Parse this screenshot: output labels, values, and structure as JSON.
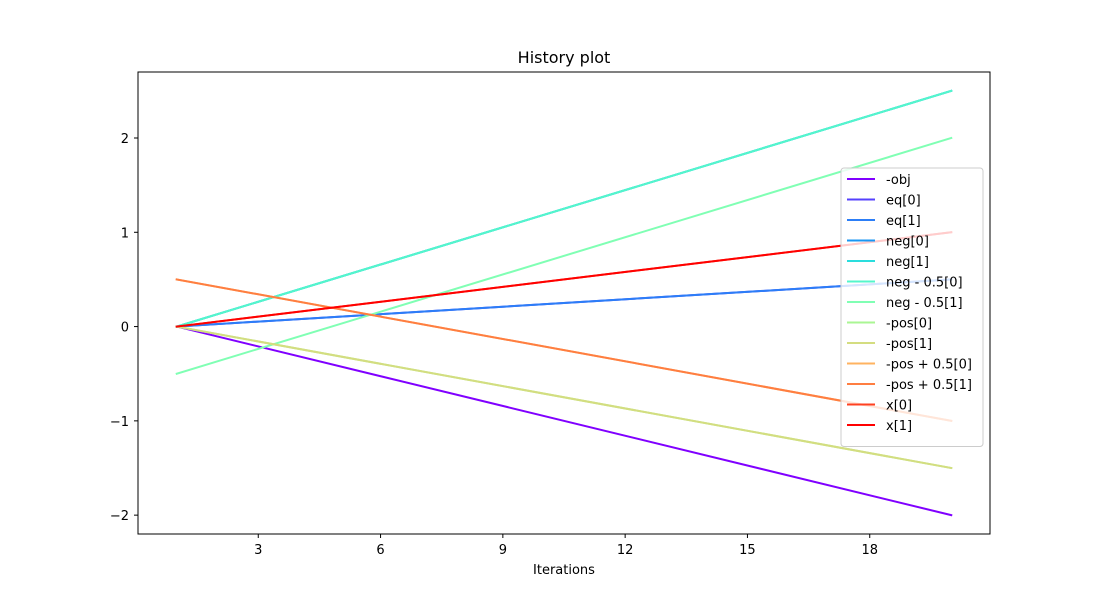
{
  "chart_data": {
    "type": "line",
    "title": "History plot",
    "xlabel": "Iterations",
    "ylabel": "",
    "xlim": [
      0.05,
      20.95
    ],
    "ylim": [
      -2.2,
      2.7
    ],
    "xticks": [
      3,
      6,
      9,
      12,
      15,
      18
    ],
    "yticks": [
      -2,
      -1,
      0,
      1,
      2
    ],
    "xtick_labels": [
      "3",
      "6",
      "9",
      "12",
      "15",
      "18"
    ],
    "ytick_labels": [
      "−2",
      "−1",
      "0",
      "1",
      "2"
    ],
    "grid": false,
    "legend_position": "right",
    "x": [
      1,
      20
    ],
    "series": [
      {
        "name": "-obj",
        "color": "#8000ff",
        "values": [
          0,
          -2
        ]
      },
      {
        "name": "eq[0]",
        "color": "#5641fd",
        "values": [
          0,
          0.5
        ]
      },
      {
        "name": "eq[1]",
        "color": "#2c7ef7",
        "values": [
          0,
          0.5
        ]
      },
      {
        "name": "neg[0]",
        "color": "#1996f3",
        "values": [
          0,
          2.5
        ]
      },
      {
        "name": "neg[1]",
        "color": "#2adddd",
        "values": [
          0,
          2.5
        ]
      },
      {
        "name": "neg - 0.5[0]",
        "color": "#54f6cb",
        "values": [
          0,
          2.5
        ]
      },
      {
        "name": "neg - 0.5[1]",
        "color": "#80ffb4",
        "values": [
          -0.5,
          2
        ]
      },
      {
        "name": "-pos[0]",
        "color": "#aaf693",
        "values": [
          0,
          -1.5
        ]
      },
      {
        "name": "-pos[1]",
        "color": "#d4dd80",
        "values": [
          0,
          -1.5
        ]
      },
      {
        "name": "-pos + 0.5[0]",
        "color": "#ffb360",
        "values": [
          0.5,
          -1
        ]
      },
      {
        "name": "-pos + 0.5[1]",
        "color": "#ff7e41",
        "values": [
          0.5,
          -1
        ]
      },
      {
        "name": "x[0]",
        "color": "#ff4121",
        "values": [
          0,
          1
        ]
      },
      {
        "name": "x[1]",
        "color": "#ff0000",
        "values": [
          0,
          1
        ]
      }
    ]
  }
}
